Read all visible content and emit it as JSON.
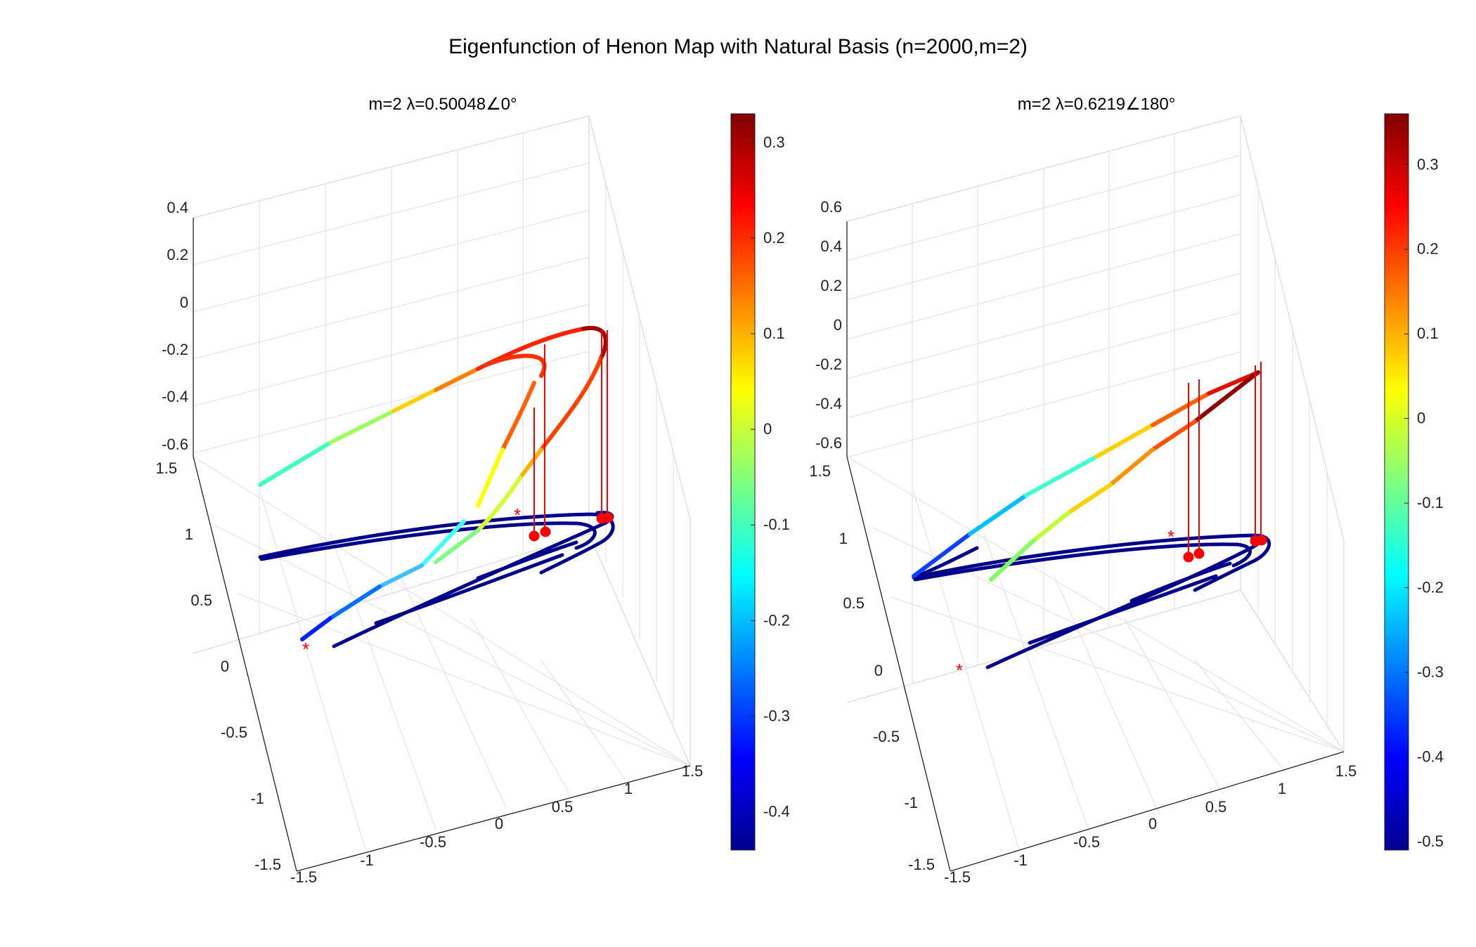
{
  "figure_title": "Eigenfunction of Henon Map with Natural Basis (n=2000,m=2)",
  "chart_data": [
    {
      "type": "scatter3d",
      "title": "m=2 λ=0.50048∠0°",
      "xlim": [
        -1.5,
        1.5
      ],
      "ylim": [
        -1.5,
        1.5
      ],
      "zlim": [
        -0.6,
        0.4
      ],
      "x_ticks": [
        "-1.5",
        "-1",
        "-0.5",
        "0",
        "0.5",
        "1",
        "1.5"
      ],
      "y_ticks": [
        "-1.5",
        "-1",
        "-0.5",
        "0",
        "0.5",
        "1",
        "1.5"
      ],
      "z_ticks": [
        "-0.6",
        "-0.4",
        "-0.2",
        "0",
        "0.2",
        "0.4"
      ],
      "colorbar": {
        "colormap": "jet",
        "range": [
          -0.44,
          0.33
        ],
        "ticks": [
          "-0.4",
          "-0.3",
          "-0.2",
          "-0.1",
          "0",
          "0.1",
          "0.2",
          "0.3"
        ],
        "tick_values": [
          -0.4,
          -0.3,
          -0.2,
          -0.1,
          0,
          0.1,
          0.2,
          0.3
        ]
      },
      "attractor_color": "#00008b",
      "marker_color": "#ff0000",
      "grid": true
    },
    {
      "type": "scatter3d",
      "title": "m=2 λ=0.6219∠180°",
      "xlim": [
        -1.5,
        1.5
      ],
      "ylim": [
        -1.5,
        1.5
      ],
      "zlim": [
        -0.6,
        0.6
      ],
      "x_ticks": [
        "-1.5",
        "-1",
        "-0.5",
        "0",
        "0.5",
        "1",
        "1.5"
      ],
      "y_ticks": [
        "-1.5",
        "-1",
        "-0.5",
        "0",
        "0.5",
        "1",
        "1.5"
      ],
      "z_ticks": [
        "-0.6",
        "-0.4",
        "-0.2",
        "0",
        "0.2",
        "0.4",
        "0.6"
      ],
      "colorbar": {
        "colormap": "jet",
        "range": [
          -0.51,
          0.36
        ],
        "ticks": [
          "-0.5",
          "-0.4",
          "-0.3",
          "-0.2",
          "-0.1",
          "0",
          "0.1",
          "0.2",
          "0.3"
        ],
        "tick_values": [
          -0.5,
          -0.4,
          -0.3,
          -0.2,
          -0.1,
          0,
          0.1,
          0.2,
          0.3
        ]
      },
      "attractor_color": "#00008b",
      "marker_color": "#ff0000",
      "grid": true
    }
  ]
}
